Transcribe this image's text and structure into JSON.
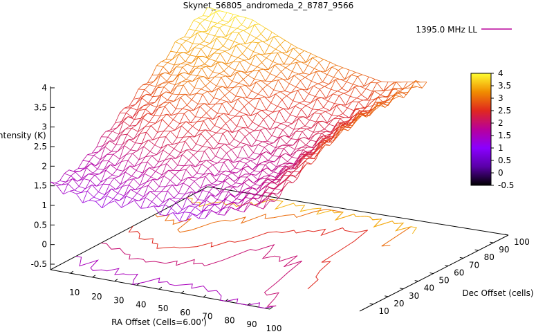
{
  "chart_data": {
    "type": "surface",
    "title": "Skynet_56805_andromeda_2_8787_9566",
    "xlabel": "RA Offset (Cells=6.00')",
    "ylabel": "Dec Offset (cells)",
    "zlabel": "Intensity (K)",
    "legend": {
      "label": "1395.0 MHz LL",
      "position": "top-right"
    },
    "x_ticks": [
      "10",
      "20",
      "30",
      "40",
      "50",
      "60",
      "70",
      "80",
      "90",
      "100"
    ],
    "y_ticks": [
      "10",
      "20",
      "30",
      "40",
      "50",
      "60",
      "70",
      "80",
      "90",
      "100"
    ],
    "z_ticks": [
      "-0.5",
      "0",
      "0.5",
      "1",
      "1.5",
      "2",
      "2.5",
      "3",
      "3.5",
      "4"
    ],
    "colorbar_ticks": [
      "4",
      "3.5",
      "3",
      "2.5",
      "2",
      "1.5",
      "1",
      "0.5",
      "0",
      "-0.5"
    ],
    "x_range": [
      1,
      100
    ],
    "y_range": [
      1,
      100
    ],
    "z_range": [
      -0.5,
      4
    ],
    "colormap": [
      "#000000",
      "#5a00a8",
      "#8a00ff",
      "#b8009a",
      "#e0281e",
      "#f08c00",
      "#ffff30"
    ],
    "grid": false,
    "approx_surface_intensity_K": {
      "dec_offsets": [
        1,
        20,
        40,
        60,
        80,
        100
      ],
      "ra_offsets": [
        1,
        20,
        40,
        60,
        80,
        100
      ],
      "rows": [
        [
          1.5,
          1.2,
          1.4,
          1.2,
          1.6,
          2.0
        ],
        [
          1.6,
          1.8,
          1.9,
          1.7,
          1.8,
          2.4
        ],
        [
          2.2,
          2.6,
          2.4,
          1.8,
          1.9,
          2.8
        ],
        [
          2.8,
          3.1,
          2.7,
          2.1,
          2.2,
          3.0
        ],
        [
          3.4,
          3.3,
          3.0,
          2.6,
          2.4,
          3.0
        ],
        [
          3.9,
          3.8,
          3.3,
          3.0,
          2.8,
          3.0
        ]
      ]
    }
  }
}
